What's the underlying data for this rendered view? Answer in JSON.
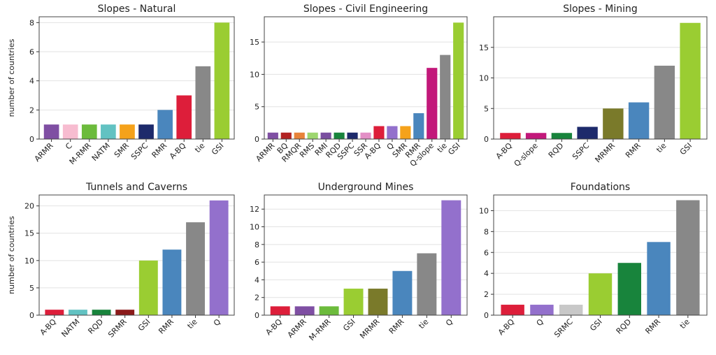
{
  "chart_data": [
    {
      "type": "bar",
      "title": "Slopes - Natural",
      "ylabel": "number of countries",
      "categories": [
        "ARMR",
        "C",
        "M-RMR",
        "NATM",
        "SMR",
        "SSPC",
        "RMR",
        "A-BQ",
        "tie",
        "GSI"
      ],
      "values": [
        1,
        1,
        1,
        1,
        1,
        1,
        2,
        3,
        5,
        8
      ],
      "colors": [
        "#7f4fa3",
        "#f7bcd0",
        "#6cbb3c",
        "#62c2c2",
        "#f5a21b",
        "#1d2a6b",
        "#4a86bd",
        "#dd1e3a",
        "#888888",
        "#9acd32"
      ],
      "yticks": [
        0,
        2,
        4,
        6,
        8
      ],
      "ylim": [
        0,
        8.4
      ],
      "grid": "y"
    },
    {
      "type": "bar",
      "title": "Slopes - Civil Engineering",
      "ylabel": "",
      "categories": [
        "ARMR",
        "BQ",
        "RMQR",
        "RMS",
        "RMI",
        "RQD",
        "SSPC",
        "SSR",
        "A-BQ",
        "Q",
        "SMR",
        "RMR",
        "Q-slope",
        "tie",
        "GSI"
      ],
      "values": [
        1,
        1,
        1,
        1,
        1,
        1,
        1,
        1,
        2,
        2,
        2,
        4,
        11,
        13,
        18
      ],
      "colors": [
        "#7f4fa3",
        "#b22222",
        "#e8833a",
        "#9dd66f",
        "#7a4fa0",
        "#18843c",
        "#1d2a6b",
        "#e38fc6",
        "#dd1e3a",
        "#9370cc",
        "#f5a21b",
        "#4a86bd",
        "#c2187a",
        "#888888",
        "#9acd32"
      ],
      "yticks": [
        0,
        5,
        10,
        15
      ],
      "ylim": [
        0,
        18.9
      ],
      "grid": "y"
    },
    {
      "type": "bar",
      "title": "Slopes - Mining",
      "ylabel": "",
      "categories": [
        "A-BQ",
        "Q-slope",
        "RQD",
        "SSPC",
        "MRMR",
        "RMR",
        "tie",
        "GSI"
      ],
      "values": [
        1,
        1,
        1,
        2,
        5,
        6,
        12,
        19
      ],
      "colors": [
        "#dd1e3a",
        "#c2187a",
        "#18843c",
        "#1d2a6b",
        "#7a7a2a",
        "#4a86bd",
        "#888888",
        "#9acd32"
      ],
      "yticks": [
        0,
        5,
        10,
        15
      ],
      "ylim": [
        0,
        20
      ],
      "grid": "y"
    },
    {
      "type": "bar",
      "title": "Tunnels and Caverns",
      "ylabel": "number of countries",
      "categories": [
        "A-BQ",
        "NATM",
        "RQD",
        "SRMR",
        "GSI",
        "RMR",
        "tie",
        "Q"
      ],
      "values": [
        1,
        1,
        1,
        1,
        10,
        12,
        17,
        21
      ],
      "colors": [
        "#dd1e3a",
        "#62c2c2",
        "#18843c",
        "#8b1a1a",
        "#9acd32",
        "#4a86bd",
        "#888888",
        "#9370cc"
      ],
      "yticks": [
        0,
        5,
        10,
        15,
        20
      ],
      "ylim": [
        0,
        22
      ],
      "grid": "y"
    },
    {
      "type": "bar",
      "title": "Underground Mines",
      "ylabel": "",
      "categories": [
        "A-BQ",
        "ARMR",
        "M-RMR",
        "GSI",
        "MRMR",
        "RMR",
        "tie",
        "Q"
      ],
      "values": [
        1,
        1,
        1,
        3,
        3,
        5,
        7,
        13
      ],
      "colors": [
        "#dd1e3a",
        "#7f4fa3",
        "#6cbb3c",
        "#9acd32",
        "#7a7a2a",
        "#4a86bd",
        "#888888",
        "#9370cc"
      ],
      "yticks": [
        0,
        2,
        4,
        6,
        8,
        10,
        12
      ],
      "ylim": [
        0,
        13.6
      ],
      "grid": "y"
    },
    {
      "type": "bar",
      "title": "Foundations",
      "ylabel": "",
      "categories": [
        "A-BQ",
        "Q",
        "SRMC",
        "GSI",
        "RQD",
        "RMR",
        "tie"
      ],
      "values": [
        1,
        1,
        1,
        4,
        5,
        7,
        11
      ],
      "colors": [
        "#dd1e3a",
        "#9370cc",
        "#c8c8c8",
        "#9acd32",
        "#18843c",
        "#4a86bd",
        "#888888"
      ],
      "yticks": [
        0,
        2,
        4,
        6,
        8,
        10
      ],
      "ylim": [
        0,
        11.5
      ],
      "grid": "y"
    }
  ]
}
